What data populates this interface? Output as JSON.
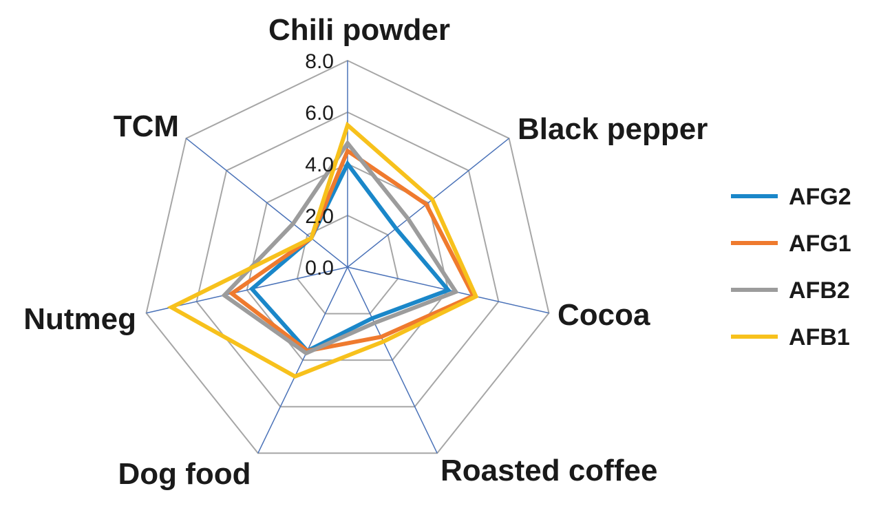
{
  "chart_data": {
    "type": "radar",
    "categories": [
      "Chili powder",
      "Black pepper",
      "Cocoa",
      "Roasted coffee",
      "Dog food",
      "Nutmeg",
      "TCM"
    ],
    "r_range": [
      0,
      8
    ],
    "r_ticks": [
      "0.0",
      "2.0",
      "4.0",
      "6.0",
      "8.0"
    ],
    "grid": true,
    "legend_position": "right",
    "series": [
      {
        "name": "AFG2",
        "color": "#1a87c9",
        "values": [
          4.0,
          2.4,
          4.0,
          2.2,
          3.6,
          3.8,
          1.8
        ]
      },
      {
        "name": "AFG1",
        "color": "#ef7a2e",
        "values": [
          4.5,
          3.9,
          5.0,
          3.0,
          3.6,
          4.6,
          1.8
        ]
      },
      {
        "name": "AFB2",
        "color": "#9c9c9c",
        "values": [
          4.8,
          3.0,
          4.3,
          2.4,
          3.7,
          4.9,
          2.7
        ]
      },
      {
        "name": "AFB1",
        "color": "#f7c11c",
        "values": [
          5.5,
          4.2,
          5.1,
          3.2,
          4.7,
          7.0,
          1.8
        ]
      }
    ]
  }
}
